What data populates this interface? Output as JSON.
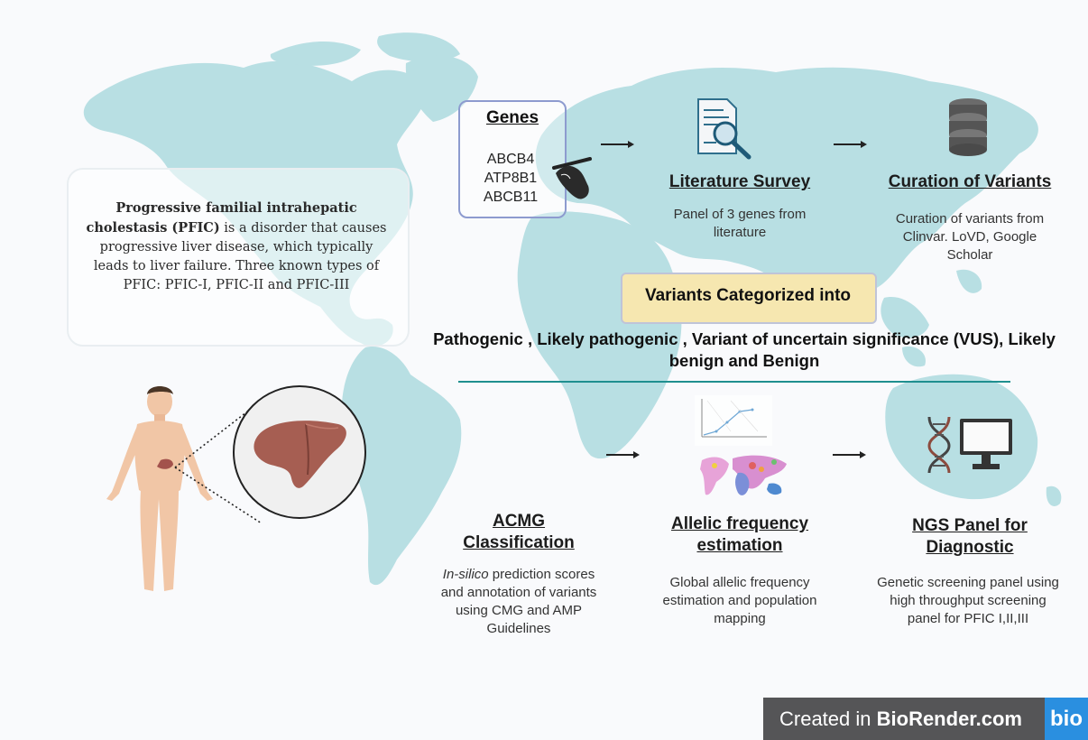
{
  "intro": {
    "bold": "Progressive familial intrahepatic cholestasis (PFIC)",
    "rest": " is a disorder that causes progressive liver disease, which typically leads to liver failure. Three known types of PFIC: PFIC-I, PFIC-II and PFIC-III"
  },
  "genes": {
    "title": "Genes",
    "items": [
      "ABCB4",
      "ATP8B1",
      "ABCB11"
    ]
  },
  "literature": {
    "title": "Literature Survey",
    "desc": "Panel of 3 genes from literature"
  },
  "curation": {
    "title": "Curation of Variants",
    "desc": "Curation of variants from Clinvar. LoVD, Google Scholar"
  },
  "categorized": {
    "label": "Variants Categorized into",
    "list": "Pathogenic , Likely pathogenic , Variant of uncertain significance (VUS), Likely benign and Benign"
  },
  "acmg": {
    "title": "ACMG Classification",
    "desc_italic": "In-silico",
    "desc": " prediction scores and annotation of  variants using CMG and AMP Guidelines"
  },
  "allelic": {
    "title": "Allelic frequency estimation",
    "desc": "Global allelic frequency estimation and population mapping"
  },
  "ngs": {
    "title": "NGS Panel for Diagnostic",
    "desc": "Genetic screening panel using high throughput screening panel for PFIC I,II,III"
  },
  "watermark": {
    "prefix": "Created in ",
    "brand": "BioRender.com",
    "logo": "bio"
  },
  "colors": {
    "map": "#b8dfe3",
    "divider": "#1f8f8f",
    "category_box": "#f6e7b0",
    "genes_border": "#8d9bcf",
    "badge": "#555557",
    "logo": "#2a8fe0"
  }
}
